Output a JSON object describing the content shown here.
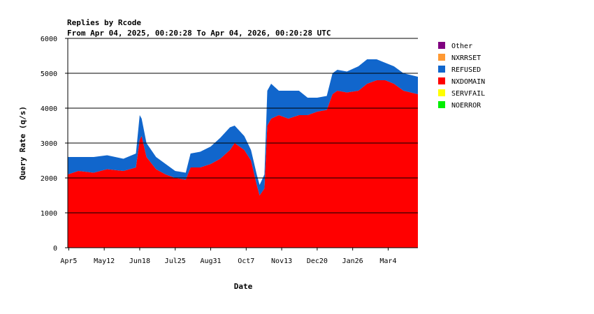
{
  "chart_data": {
    "type": "area",
    "stacked": true,
    "title": "Replies by Rcode",
    "subtitle": "From Apr 04, 2025, 00:20:28 To Apr 04, 2026, 00:20:28 UTC",
    "xlabel": "Date",
    "ylabel": "Query Rate (q/s)",
    "ylim": [
      0,
      6000
    ],
    "yticks": [
      0,
      1000,
      2000,
      3000,
      4000,
      5000,
      6000
    ],
    "xlim": [
      "2025-04-04",
      "2026-04-04"
    ],
    "xticks": [
      {
        "date": "2025-04-05",
        "label": "Apr5"
      },
      {
        "date": "2025-05-12",
        "label": "May12"
      },
      {
        "date": "2025-06-18",
        "label": "Jun18"
      },
      {
        "date": "2025-07-25",
        "label": "Jul25"
      },
      {
        "date": "2025-08-31",
        "label": "Aug31"
      },
      {
        "date": "2025-10-07",
        "label": "Oct7"
      },
      {
        "date": "2025-11-13",
        "label": "Nov13"
      },
      {
        "date": "2025-12-20",
        "label": "Dec20"
      },
      {
        "date": "2026-01-26",
        "label": "Jan26"
      },
      {
        "date": "2026-03-04",
        "label": "Mar4"
      }
    ],
    "grid": "horizontal",
    "legend_position": "right",
    "legend": [
      {
        "name": "Other",
        "color": "#800080"
      },
      {
        "name": "NXRRSET",
        "color": "#ff9933"
      },
      {
        "name": "REFUSED",
        "color": "#1166cc"
      },
      {
        "name": "NXDOMAIN",
        "color": "#ff0000"
      },
      {
        "name": "SERVFAIL",
        "color": "#ffff00"
      },
      {
        "name": "NOERROR",
        "color": "#00ee00"
      }
    ],
    "x": [
      "2025-04-04",
      "2025-04-15",
      "2025-05-01",
      "2025-05-15",
      "2025-06-01",
      "2025-06-14",
      "2025-06-18",
      "2025-06-20",
      "2025-06-25",
      "2025-07-05",
      "2025-07-15",
      "2025-07-25",
      "2025-08-05",
      "2025-08-10",
      "2025-08-20",
      "2025-08-31",
      "2025-09-10",
      "2025-09-20",
      "2025-09-25",
      "2025-10-05",
      "2025-10-12",
      "2025-10-18",
      "2025-10-21",
      "2025-10-26",
      "2025-10-29",
      "2025-11-02",
      "2025-11-10",
      "2025-11-20",
      "2025-12-01",
      "2025-12-10",
      "2025-12-20",
      "2025-12-30",
      "2026-01-05",
      "2026-01-10",
      "2026-01-20",
      "2026-02-01",
      "2026-02-10",
      "2026-02-20",
      "2026-03-01",
      "2026-03-10",
      "2026-03-20",
      "2026-04-04"
    ],
    "series": [
      {
        "name": "NXDOMAIN",
        "values": [
          2100,
          2200,
          2150,
          2250,
          2200,
          2300,
          3100,
          3200,
          2600,
          2250,
          2100,
          2000,
          1950,
          2300,
          2300,
          2400,
          2550,
          2800,
          3000,
          2800,
          2500,
          1800,
          1500,
          1700,
          3500,
          3700,
          3800,
          3700,
          3800,
          3800,
          3900,
          3950,
          4400,
          4500,
          4450,
          4500,
          4700,
          4800,
          4800,
          4700,
          4500,
          4400
        ]
      },
      {
        "name": "REFUSED",
        "values": [
          500,
          400,
          450,
          400,
          350,
          400,
          700,
          500,
          400,
          350,
          300,
          200,
          200,
          400,
          450,
          500,
          600,
          650,
          500,
          400,
          300,
          300,
          300,
          400,
          1000,
          1000,
          700,
          800,
          700,
          500,
          400,
          400,
          600,
          600,
          600,
          700,
          700,
          600,
          500,
          500,
          500,
          500
        ]
      }
    ]
  }
}
